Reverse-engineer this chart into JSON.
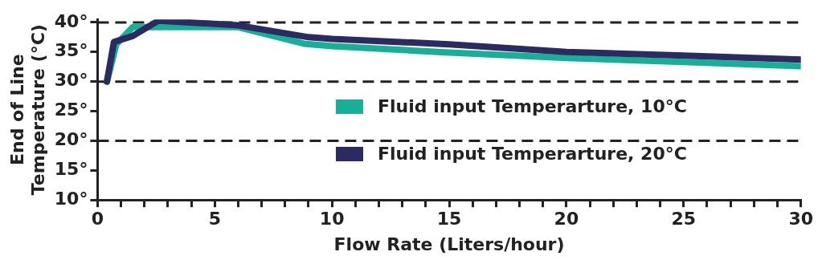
{
  "chart_data": {
    "type": "line",
    "xlabel": "Flow Rate (Liters/hour)",
    "ylabel": "End of Line\nTemperature (°C)",
    "xlim": [
      0,
      30
    ],
    "ylim": [
      10,
      40.5
    ],
    "xticks": [
      0,
      {
        "value": 1,
        "label": null
      },
      {
        "value": 2,
        "label": null
      },
      {
        "value": 3,
        "label": null
      },
      {
        "value": 4,
        "label": null
      },
      5,
      {
        "value": 6,
        "label": null
      },
      {
        "value": 7,
        "label": null
      },
      {
        "value": 8,
        "label": null
      },
      {
        "value": 9,
        "label": null
      },
      10,
      {
        "value": 11,
        "label": null
      },
      {
        "value": 12,
        "label": null
      },
      {
        "value": 13,
        "label": null
      },
      {
        "value": 14,
        "label": null
      },
      15,
      {
        "value": 16,
        "label": null
      },
      {
        "value": 17,
        "label": null
      },
      {
        "value": 18,
        "label": null
      },
      {
        "value": 19,
        "label": null
      },
      20,
      {
        "value": 21,
        "label": null
      },
      {
        "value": 22,
        "label": null
      },
      {
        "value": 23,
        "label": null
      },
      {
        "value": 24,
        "label": null
      },
      25,
      {
        "value": 26,
        "label": null
      },
      {
        "value": 27,
        "label": null
      },
      {
        "value": 28,
        "label": null
      },
      {
        "value": 29,
        "label": null
      },
      30
    ],
    "yticks": [
      {
        "value": 10,
        "label": "10°"
      },
      {
        "value": 15,
        "label": "15°"
      },
      {
        "value": 20,
        "label": "20°"
      },
      {
        "value": 25,
        "label": "25°"
      },
      {
        "value": 30,
        "label": "30°"
      },
      {
        "value": 35,
        "label": "35°"
      },
      {
        "value": 40,
        "label": "40°"
      }
    ],
    "ref_lines": [
      {
        "axis": "y",
        "value": 20,
        "line_style": "dashed",
        "color": "#222222"
      },
      {
        "axis": "y",
        "value": 30,
        "line_style": "dashed",
        "color": "#222222"
      },
      {
        "axis": "y",
        "value": 40,
        "line_style": "dashed",
        "color": "#222222"
      }
    ],
    "legend": "bottom right",
    "marker": "none",
    "line_style": "solid",
    "series": [
      {
        "name": "Fluid input Temperarture, 20°C",
        "color": "#2b2b62",
        "x": [
          0.4,
          0.7,
          1.5,
          2.6,
          6,
          9,
          10,
          15,
          20,
          25,
          30
        ],
        "values": [
          30,
          36.7,
          37.7,
          40.3,
          39.5,
          37.5,
          37.2,
          36.3,
          35,
          34.4,
          33.7
        ]
      },
      {
        "name": "Fluid input Temperarture, 10°C",
        "color": "#19ae98",
        "x": [
          0.4,
          0.8,
          1.5,
          6,
          8.8,
          10,
          15,
          20,
          25,
          30
        ],
        "values": [
          30,
          36.3,
          39.2,
          39.2,
          36.4,
          36,
          34.9,
          34,
          33.3,
          32.6
        ]
      }
    ]
  }
}
